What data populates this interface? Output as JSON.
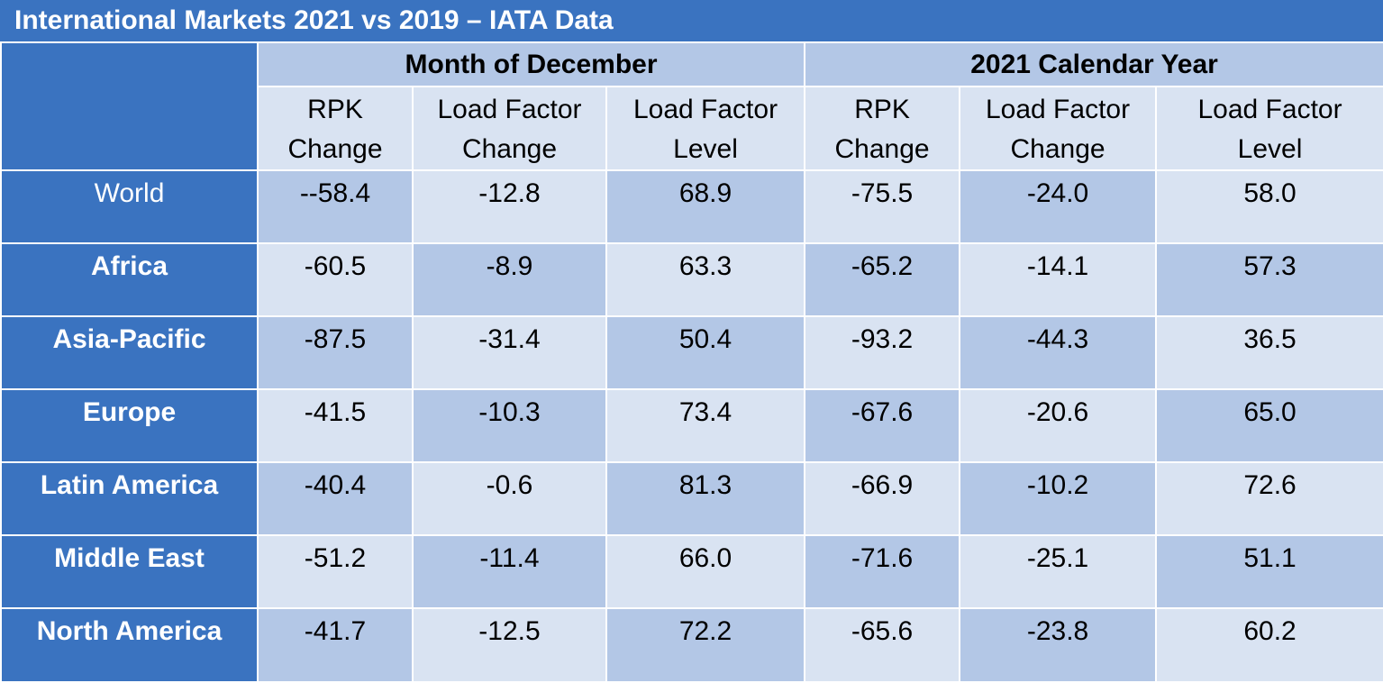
{
  "title": "International Markets 2021 vs 2019 – IATA Data",
  "groups": [
    "Month of December",
    "2021 Calendar Year"
  ],
  "columns": [
    {
      "line1": "RPK",
      "line2": "Change"
    },
    {
      "line1": "Load Factor",
      "line2": "Change"
    },
    {
      "line1": "Load Factor",
      "line2": "Level"
    },
    {
      "line1": "RPK",
      "line2": "Change"
    },
    {
      "line1": "Load Factor",
      "line2": "Change"
    },
    {
      "line1": "Load Factor",
      "line2": "Level"
    }
  ],
  "rows": [
    {
      "region": "World",
      "values": [
        "--58.4",
        "-12.8",
        "68.9",
        "-75.5",
        "-24.0",
        "58.0"
      ]
    },
    {
      "region": "Africa",
      "values": [
        "-60.5",
        "-8.9",
        "63.3",
        "-65.2",
        "-14.1",
        "57.3"
      ]
    },
    {
      "region": "Asia-Pacific",
      "values": [
        "-87.5",
        "-31.4",
        "50.4",
        "-93.2",
        "-44.3",
        "36.5"
      ]
    },
    {
      "region": "Europe",
      "values": [
        "-41.5",
        "-10.3",
        "73.4",
        "-67.6",
        "-20.6",
        "65.0"
      ]
    },
    {
      "region": "Latin America",
      "values": [
        "-40.4",
        "-0.6",
        "81.3",
        "-66.9",
        "-10.2",
        "72.6"
      ]
    },
    {
      "region": "Middle East",
      "values": [
        "-51.2",
        "-11.4",
        "66.0",
        "-71.6",
        "-25.1",
        "51.1"
      ]
    },
    {
      "region": "North America",
      "values": [
        "-41.7",
        "-12.5",
        "72.2",
        "-65.6",
        "-23.8",
        "60.2"
      ]
    }
  ],
  "colors": {
    "header_blue": "#3a73c0",
    "band_dark": "#b3c7e6",
    "band_light": "#d9e3f2",
    "header_text": "#ffffff"
  }
}
